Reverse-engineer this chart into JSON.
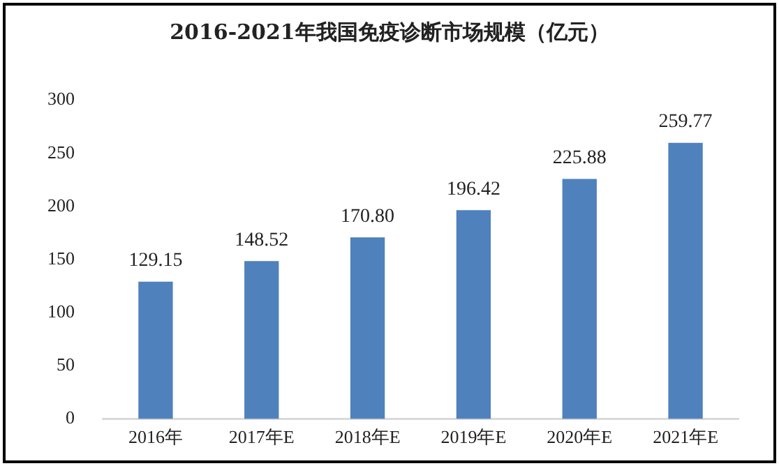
{
  "chart_data": {
    "type": "bar",
    "title": "2016-2021年我国免疫诊断市场规模（亿元）",
    "categories": [
      "2016年",
      "2017年E",
      "2018年E",
      "2019年E",
      "2020年E",
      "2021年E"
    ],
    "values": [
      129.15,
      148.52,
      170.8,
      196.42,
      225.88,
      259.77
    ],
    "color": "#4f81bd",
    "ylim": [
      0,
      300
    ],
    "yticks": [
      0,
      50,
      100,
      150,
      200,
      250,
      300
    ],
    "value_labels": [
      "129.15",
      "148.52",
      "170.80",
      "196.42",
      "225.88",
      "259.77"
    ],
    "grid": false,
    "legend": false
  }
}
